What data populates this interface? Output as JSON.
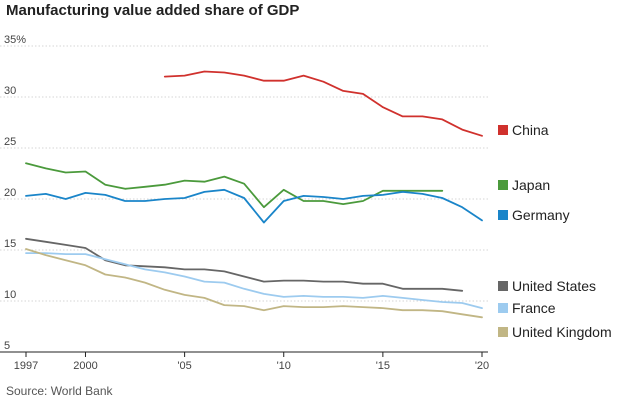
{
  "chart_data": {
    "type": "line",
    "title": "Manufacturing value added share of GDP",
    "source": "Source: World Bank",
    "xlabel": "",
    "ylabel": "",
    "xlim": [
      1997,
      2020
    ],
    "ylim": [
      5,
      35
    ],
    "x_ticks": [
      {
        "value": 1997,
        "label": "1997"
      },
      {
        "value": 2000,
        "label": "2000"
      },
      {
        "value": 2005,
        "label": "'05"
      },
      {
        "value": 2010,
        "label": "'10"
      },
      {
        "value": 2015,
        "label": "'15"
      },
      {
        "value": 2020,
        "label": "'20"
      }
    ],
    "y_ticks": [
      {
        "value": 5,
        "label": "5"
      },
      {
        "value": 10,
        "label": "10"
      },
      {
        "value": 15,
        "label": "15"
      },
      {
        "value": 20,
        "label": "20"
      },
      {
        "value": 25,
        "label": "25"
      },
      {
        "value": 30,
        "label": "30"
      },
      {
        "value": 35,
        "label": "35%"
      }
    ],
    "grid": true,
    "legend": "right",
    "series": [
      {
        "name": "China",
        "color": "#d0312d",
        "x": [
          2004,
          2005,
          2006,
          2007,
          2008,
          2009,
          2010,
          2011,
          2012,
          2013,
          2014,
          2015,
          2016,
          2017,
          2018,
          2019,
          2020
        ],
        "y": [
          32.0,
          32.1,
          32.5,
          32.4,
          32.1,
          31.6,
          31.6,
          32.1,
          31.5,
          30.6,
          30.3,
          29.0,
          28.1,
          28.1,
          27.8,
          26.8,
          26.2
        ]
      },
      {
        "name": "Japan",
        "color": "#4b9a3c",
        "x": [
          1997,
          1998,
          1999,
          2000,
          2001,
          2002,
          2003,
          2004,
          2005,
          2006,
          2007,
          2008,
          2009,
          2010,
          2011,
          2012,
          2013,
          2014,
          2015,
          2016,
          2017,
          2018
        ],
        "y": [
          23.5,
          23.0,
          22.6,
          22.7,
          21.4,
          21.0,
          21.2,
          21.4,
          21.8,
          21.7,
          22.2,
          21.5,
          19.2,
          20.9,
          19.8,
          19.8,
          19.5,
          19.8,
          20.8,
          20.8,
          20.8,
          20.8
        ]
      },
      {
        "name": "Germany",
        "color": "#1a85c9",
        "x": [
          1997,
          1998,
          1999,
          2000,
          2001,
          2002,
          2003,
          2004,
          2005,
          2006,
          2007,
          2008,
          2009,
          2010,
          2011,
          2012,
          2013,
          2014,
          2015,
          2016,
          2017,
          2018,
          2019,
          2020
        ],
        "y": [
          20.3,
          20.5,
          20.0,
          20.6,
          20.4,
          19.8,
          19.8,
          20.0,
          20.1,
          20.7,
          20.9,
          20.1,
          17.7,
          19.8,
          20.3,
          20.2,
          20.0,
          20.3,
          20.4,
          20.7,
          20.5,
          20.1,
          19.2,
          17.9
        ]
      },
      {
        "name": "United States",
        "color": "#666666",
        "x": [
          1997,
          1998,
          1999,
          2000,
          2001,
          2002,
          2003,
          2004,
          2005,
          2006,
          2007,
          2008,
          2009,
          2010,
          2011,
          2012,
          2013,
          2014,
          2015,
          2016,
          2017,
          2018,
          2019
        ],
        "y": [
          16.1,
          15.8,
          15.5,
          15.2,
          14.0,
          13.5,
          13.4,
          13.3,
          13.1,
          13.1,
          12.9,
          12.4,
          11.9,
          12.0,
          12.0,
          11.9,
          11.9,
          11.7,
          11.7,
          11.2,
          11.2,
          11.2,
          11.0
        ]
      },
      {
        "name": "France",
        "color": "#9dcbef",
        "x": [
          1997,
          1998,
          1999,
          2000,
          2001,
          2002,
          2003,
          2004,
          2005,
          2006,
          2007,
          2008,
          2009,
          2010,
          2011,
          2012,
          2013,
          2014,
          2015,
          2016,
          2017,
          2018,
          2019,
          2020
        ],
        "y": [
          14.7,
          14.7,
          14.6,
          14.6,
          14.1,
          13.6,
          13.1,
          12.8,
          12.4,
          11.9,
          11.8,
          11.2,
          10.7,
          10.4,
          10.5,
          10.4,
          10.4,
          10.3,
          10.5,
          10.3,
          10.1,
          9.9,
          9.8,
          9.3
        ]
      },
      {
        "name": "United Kingdom",
        "color": "#c1b685",
        "x": [
          1997,
          1998,
          1999,
          2000,
          2001,
          2002,
          2003,
          2004,
          2005,
          2006,
          2007,
          2008,
          2009,
          2010,
          2011,
          2012,
          2013,
          2014,
          2015,
          2016,
          2017,
          2018,
          2019,
          2020
        ],
        "y": [
          15.1,
          14.5,
          14.0,
          13.5,
          12.6,
          12.3,
          11.8,
          11.1,
          10.6,
          10.3,
          9.6,
          9.5,
          9.1,
          9.5,
          9.4,
          9.4,
          9.5,
          9.4,
          9.3,
          9.1,
          9.1,
          9.0,
          8.7,
          8.4
        ]
      }
    ]
  }
}
